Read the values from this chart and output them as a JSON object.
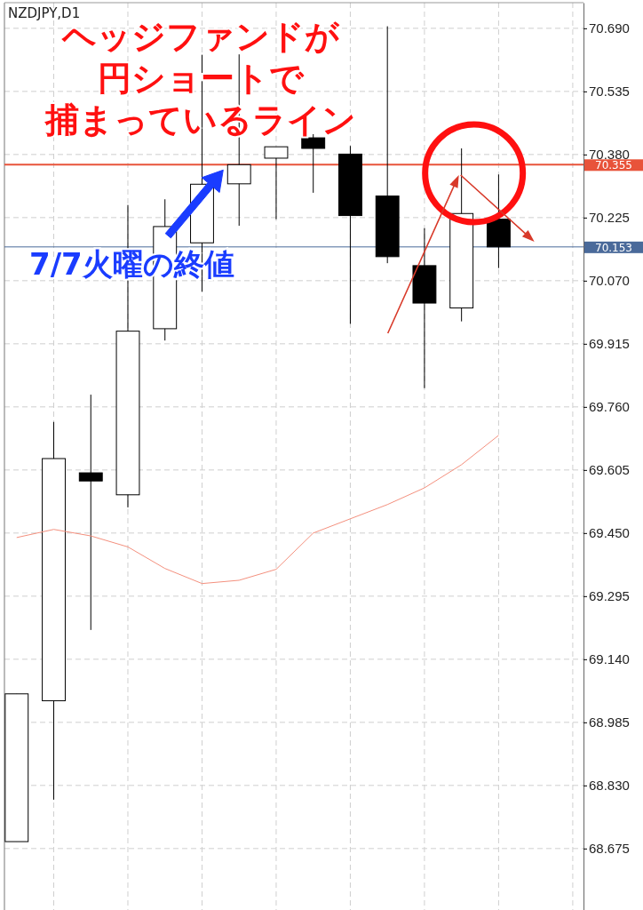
{
  "chart_data": {
    "type": "candlestick",
    "title": "NZDJPY,D1",
    "categories": [
      null,
      null,
      null,
      null,
      null,
      null,
      null,
      null,
      null,
      null,
      null,
      null,
      null,
      null
    ],
    "ohlc": [
      [
        68.692,
        69.055,
        68.692,
        69.055
      ],
      [
        69.038,
        69.723,
        68.795,
        69.633
      ],
      [
        69.598,
        69.79,
        69.212,
        69.578
      ],
      [
        69.544,
        70.256,
        69.513,
        69.946
      ],
      [
        69.952,
        70.27,
        69.923,
        70.203
      ],
      [
        70.163,
        70.625,
        70.043,
        70.307
      ],
      [
        70.308,
        70.626,
        70.205,
        70.355
      ],
      [
        70.371,
        70.399,
        70.221,
        70.399
      ],
      [
        70.421,
        70.43,
        70.286,
        70.395
      ],
      [
        70.381,
        70.401,
        69.964,
        70.23
      ],
      [
        70.278,
        70.695,
        70.113,
        70.129
      ],
      [
        70.107,
        70.199,
        69.806,
        70.015
      ],
      [
        70.003,
        70.395,
        69.97,
        70.235
      ],
      [
        70.221,
        70.331,
        70.101,
        70.153
      ]
    ],
    "series": [
      {
        "type": "line",
        "color": "#f4907e",
        "values": [
          69.439,
          69.459,
          69.443,
          69.416,
          69.363,
          69.326,
          69.334,
          69.361,
          69.45,
          69.485,
          69.52,
          69.561,
          69.618,
          69.69
        ]
      }
    ],
    "ylim": [
      68.524,
      70.753
    ],
    "yticks": [
      {
        "value": 70.69,
        "label": "70.690"
      },
      {
        "value": 70.535,
        "label": "70.535"
      },
      {
        "value": 70.38,
        "label": "70.380"
      },
      {
        "value": 70.225,
        "label": "70.225"
      },
      {
        "value": 70.07,
        "label": "70.070"
      },
      {
        "value": 69.915,
        "label": "69.915"
      },
      {
        "value": 69.76,
        "label": "69.760"
      },
      {
        "value": 69.605,
        "label": "69.605"
      },
      {
        "value": 69.45,
        "label": "69.450"
      },
      {
        "value": 69.295,
        "label": "69.295"
      },
      {
        "value": 69.14,
        "label": "69.140"
      },
      {
        "value": 68.985,
        "label": "68.985"
      },
      {
        "value": 68.83,
        "label": "68.830"
      },
      {
        "value": 68.675,
        "label": "68.675"
      }
    ],
    "grid": true,
    "ref_lines": [
      {
        "axis": "y",
        "value": 70.355,
        "label": "70.355",
        "color": "#e8533a"
      },
      {
        "axis": "y",
        "value": 70.153,
        "label": "70.153",
        "color": "#4a6a9a"
      }
    ],
    "annotations": [
      "ヘッジファンドが",
      "円ショートで",
      "捕まっているライン",
      "7/7火曜の終値"
    ]
  }
}
